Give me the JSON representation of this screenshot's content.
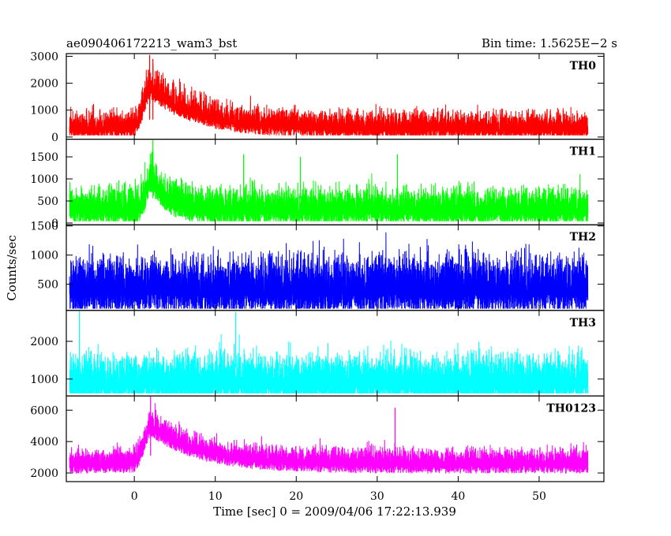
{
  "chart_data": {
    "type": "line",
    "title": "ae090406172213_wam3_bst",
    "subtitle": "Bin time: 1.5625E−2 s",
    "xlabel": "Time [sec] 0 = 2009/04/06 17:22:13.939",
    "ylabel": "Counts/sec",
    "xlim": [
      -8.4,
      58
    ],
    "x_data_range": [
      -8,
      56
    ],
    "x_ticks": [
      0,
      10,
      20,
      30,
      40,
      50
    ],
    "x_tick_labels": [
      "0",
      "10",
      "20",
      "30",
      "40",
      "50"
    ],
    "panels": [
      {
        "name": "TH0",
        "color": "#ff0000",
        "ylim": [
          -80,
          3100
        ],
        "y_ticks": [
          0,
          1000,
          2000,
          3000
        ],
        "y_tick_labels": [
          "0",
          "1000",
          "2000",
          "3000"
        ],
        "baseline": 650,
        "noise": 330,
        "lower_bound": 60,
        "peak": {
          "time": 2.0,
          "amplitude": 1450,
          "width": 1.2,
          "tail": 6.0
        },
        "spikes": [
          [
            1.9,
            3050
          ],
          [
            2.3,
            2900
          ]
        ]
      },
      {
        "name": "TH1",
        "color": "#00ff00",
        "ylim": [
          -40,
          1900
        ],
        "y_ticks": [
          0,
          500,
          1000,
          1500
        ],
        "y_tick_labels": [
          "0",
          "500",
          "1000",
          "1500"
        ],
        "baseline": 560,
        "noise": 270,
        "lower_bound": 40,
        "peak": {
          "time": 2.2,
          "amplitude": 700,
          "width": 1.0,
          "tail": 2.0
        },
        "spikes": [
          [
            2.3,
            1880
          ],
          [
            13.5,
            1560
          ],
          [
            32.5,
            1560
          ],
          [
            20.5,
            1500
          ]
        ]
      },
      {
        "name": "TH2",
        "color": "#0000ff",
        "ylim": [
          50,
          1520
        ],
        "y_ticks": [
          500,
          1000,
          1500
        ],
        "y_tick_labels": [
          "500",
          "1000",
          "1500"
        ],
        "baseline": 720,
        "noise": 320,
        "lower_bound": 80,
        "peak": {
          "time": 2.5,
          "amplitude": 40,
          "width": 1.0,
          "tail": 1.0
        },
        "spikes": []
      },
      {
        "name": "TH3",
        "color": "#00ffff",
        "ylim": [
          550,
          2820
        ],
        "y_ticks": [
          1000,
          2000
        ],
        "y_tick_labels": [
          "1000",
          "2000"
        ],
        "baseline": 1300,
        "noise": 420,
        "lower_bound": 620,
        "peak": {
          "time": 2.5,
          "amplitude": 60,
          "width": 1.0,
          "tail": 1.0
        },
        "spikes": [
          [
            -6.8,
            2800
          ],
          [
            12.5,
            2780
          ]
        ]
      },
      {
        "name": "TH0123",
        "color": "#ff00ff",
        "ylim": [
          1450,
          6900
        ],
        "y_ticks": [
          2000,
          4000,
          6000
        ],
        "y_tick_labels": [
          "2000",
          "4000",
          "6000"
        ],
        "baseline": 3100,
        "noise": 520,
        "lower_bound": 1620,
        "peak": {
          "time": 2.1,
          "amplitude": 2350,
          "width": 1.2,
          "tail": 6.0
        },
        "spikes": [
          [
            2.0,
            6900
          ],
          [
            32.2,
            6150
          ]
        ]
      }
    ]
  }
}
